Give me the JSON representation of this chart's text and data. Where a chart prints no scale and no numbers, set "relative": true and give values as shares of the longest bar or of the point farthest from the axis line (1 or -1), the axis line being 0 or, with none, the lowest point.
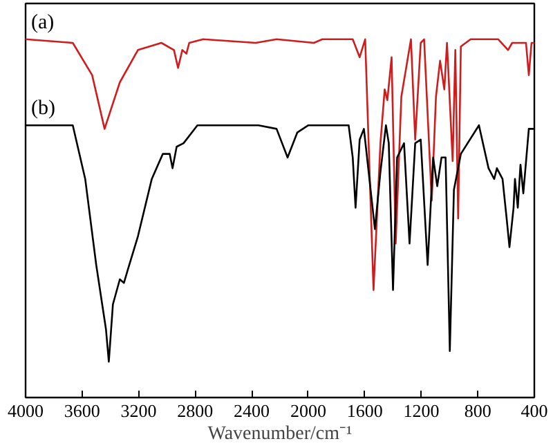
{
  "chart_data": {
    "type": "line",
    "relative": true,
    "xlabel": "Wavenumber/cm⁻¹",
    "xlim": [
      4000,
      400
    ],
    "xticks": [
      4000,
      3600,
      3200,
      2800,
      2400,
      2000,
      1600,
      1200,
      800,
      400
    ],
    "legend": false,
    "grid": false,
    "series": [
      {
        "name": "(a)",
        "color": "#d01c1c",
        "x": [
          4000,
          3666,
          3529,
          3441,
          3333,
          3205,
          3039,
          2950,
          2921,
          2891,
          2862,
          2842,
          2744,
          2372,
          2224,
          1960,
          1900,
          1685,
          1636,
          1597,
          1538,
          1489,
          1459,
          1440,
          1410,
          1381,
          1341,
          1273,
          1243,
          1204,
          1180,
          1126,
          1096,
          1067,
          1037,
          1018,
          978,
          959,
          939,
          920,
          851,
          655,
          586,
          557,
          459,
          439,
          420,
          400
        ],
        "values": [
          1.0,
          0.99,
          0.9,
          0.75,
          0.88,
          0.97,
          0.99,
          0.97,
          0.92,
          0.97,
          0.96,
          0.99,
          1.0,
          0.99,
          1.0,
          0.99,
          1.0,
          1.0,
          0.95,
          1.0,
          0.3,
          0.71,
          0.86,
          0.83,
          0.95,
          0.43,
          0.84,
          1.0,
          0.72,
          0.99,
          1.0,
          0.55,
          0.84,
          0.94,
          0.86,
          0.99,
          0.66,
          0.97,
          0.5,
          0.98,
          1.0,
          1.0,
          0.97,
          0.99,
          0.99,
          0.9,
          0.99,
          0.99
        ]
      },
      {
        "name": "(b)",
        "color": "#000000",
        "x": [
          4000,
          3666,
          3578,
          3500,
          3431,
          3411,
          3382,
          3333,
          3304,
          3274,
          3205,
          3107,
          3029,
          2980,
          2960,
          2931,
          2882,
          2784,
          2352,
          2224,
          2146,
          2077,
          1999,
          1714,
          1685,
          1665,
          1636,
          1606,
          1528,
          1489,
          1450,
          1430,
          1400,
          1371,
          1322,
          1283,
          1243,
          1204,
          1155,
          1116,
          1087,
          1057,
          1028,
          998,
          969,
          920,
          792,
          724,
          684,
          665,
          625,
          596,
          576,
          547,
          537,
          517,
          498,
          478,
          439,
          400
        ],
        "values": [
          0.76,
          0.76,
          0.61,
          0.37,
          0.19,
          0.1,
          0.26,
          0.33,
          0.32,
          0.36,
          0.45,
          0.61,
          0.68,
          0.68,
          0.64,
          0.7,
          0.71,
          0.76,
          0.76,
          0.75,
          0.67,
          0.74,
          0.76,
          0.76,
          0.67,
          0.53,
          0.72,
          0.75,
          0.47,
          0.63,
          0.76,
          0.71,
          0.3,
          0.67,
          0.71,
          0.43,
          0.71,
          0.72,
          0.37,
          0.67,
          0.59,
          0.67,
          0.67,
          0.13,
          0.58,
          0.68,
          0.76,
          0.64,
          0.61,
          0.64,
          0.61,
          0.5,
          0.42,
          0.53,
          0.61,
          0.53,
          0.65,
          0.57,
          0.75,
          0.75
        ]
      }
    ]
  }
}
